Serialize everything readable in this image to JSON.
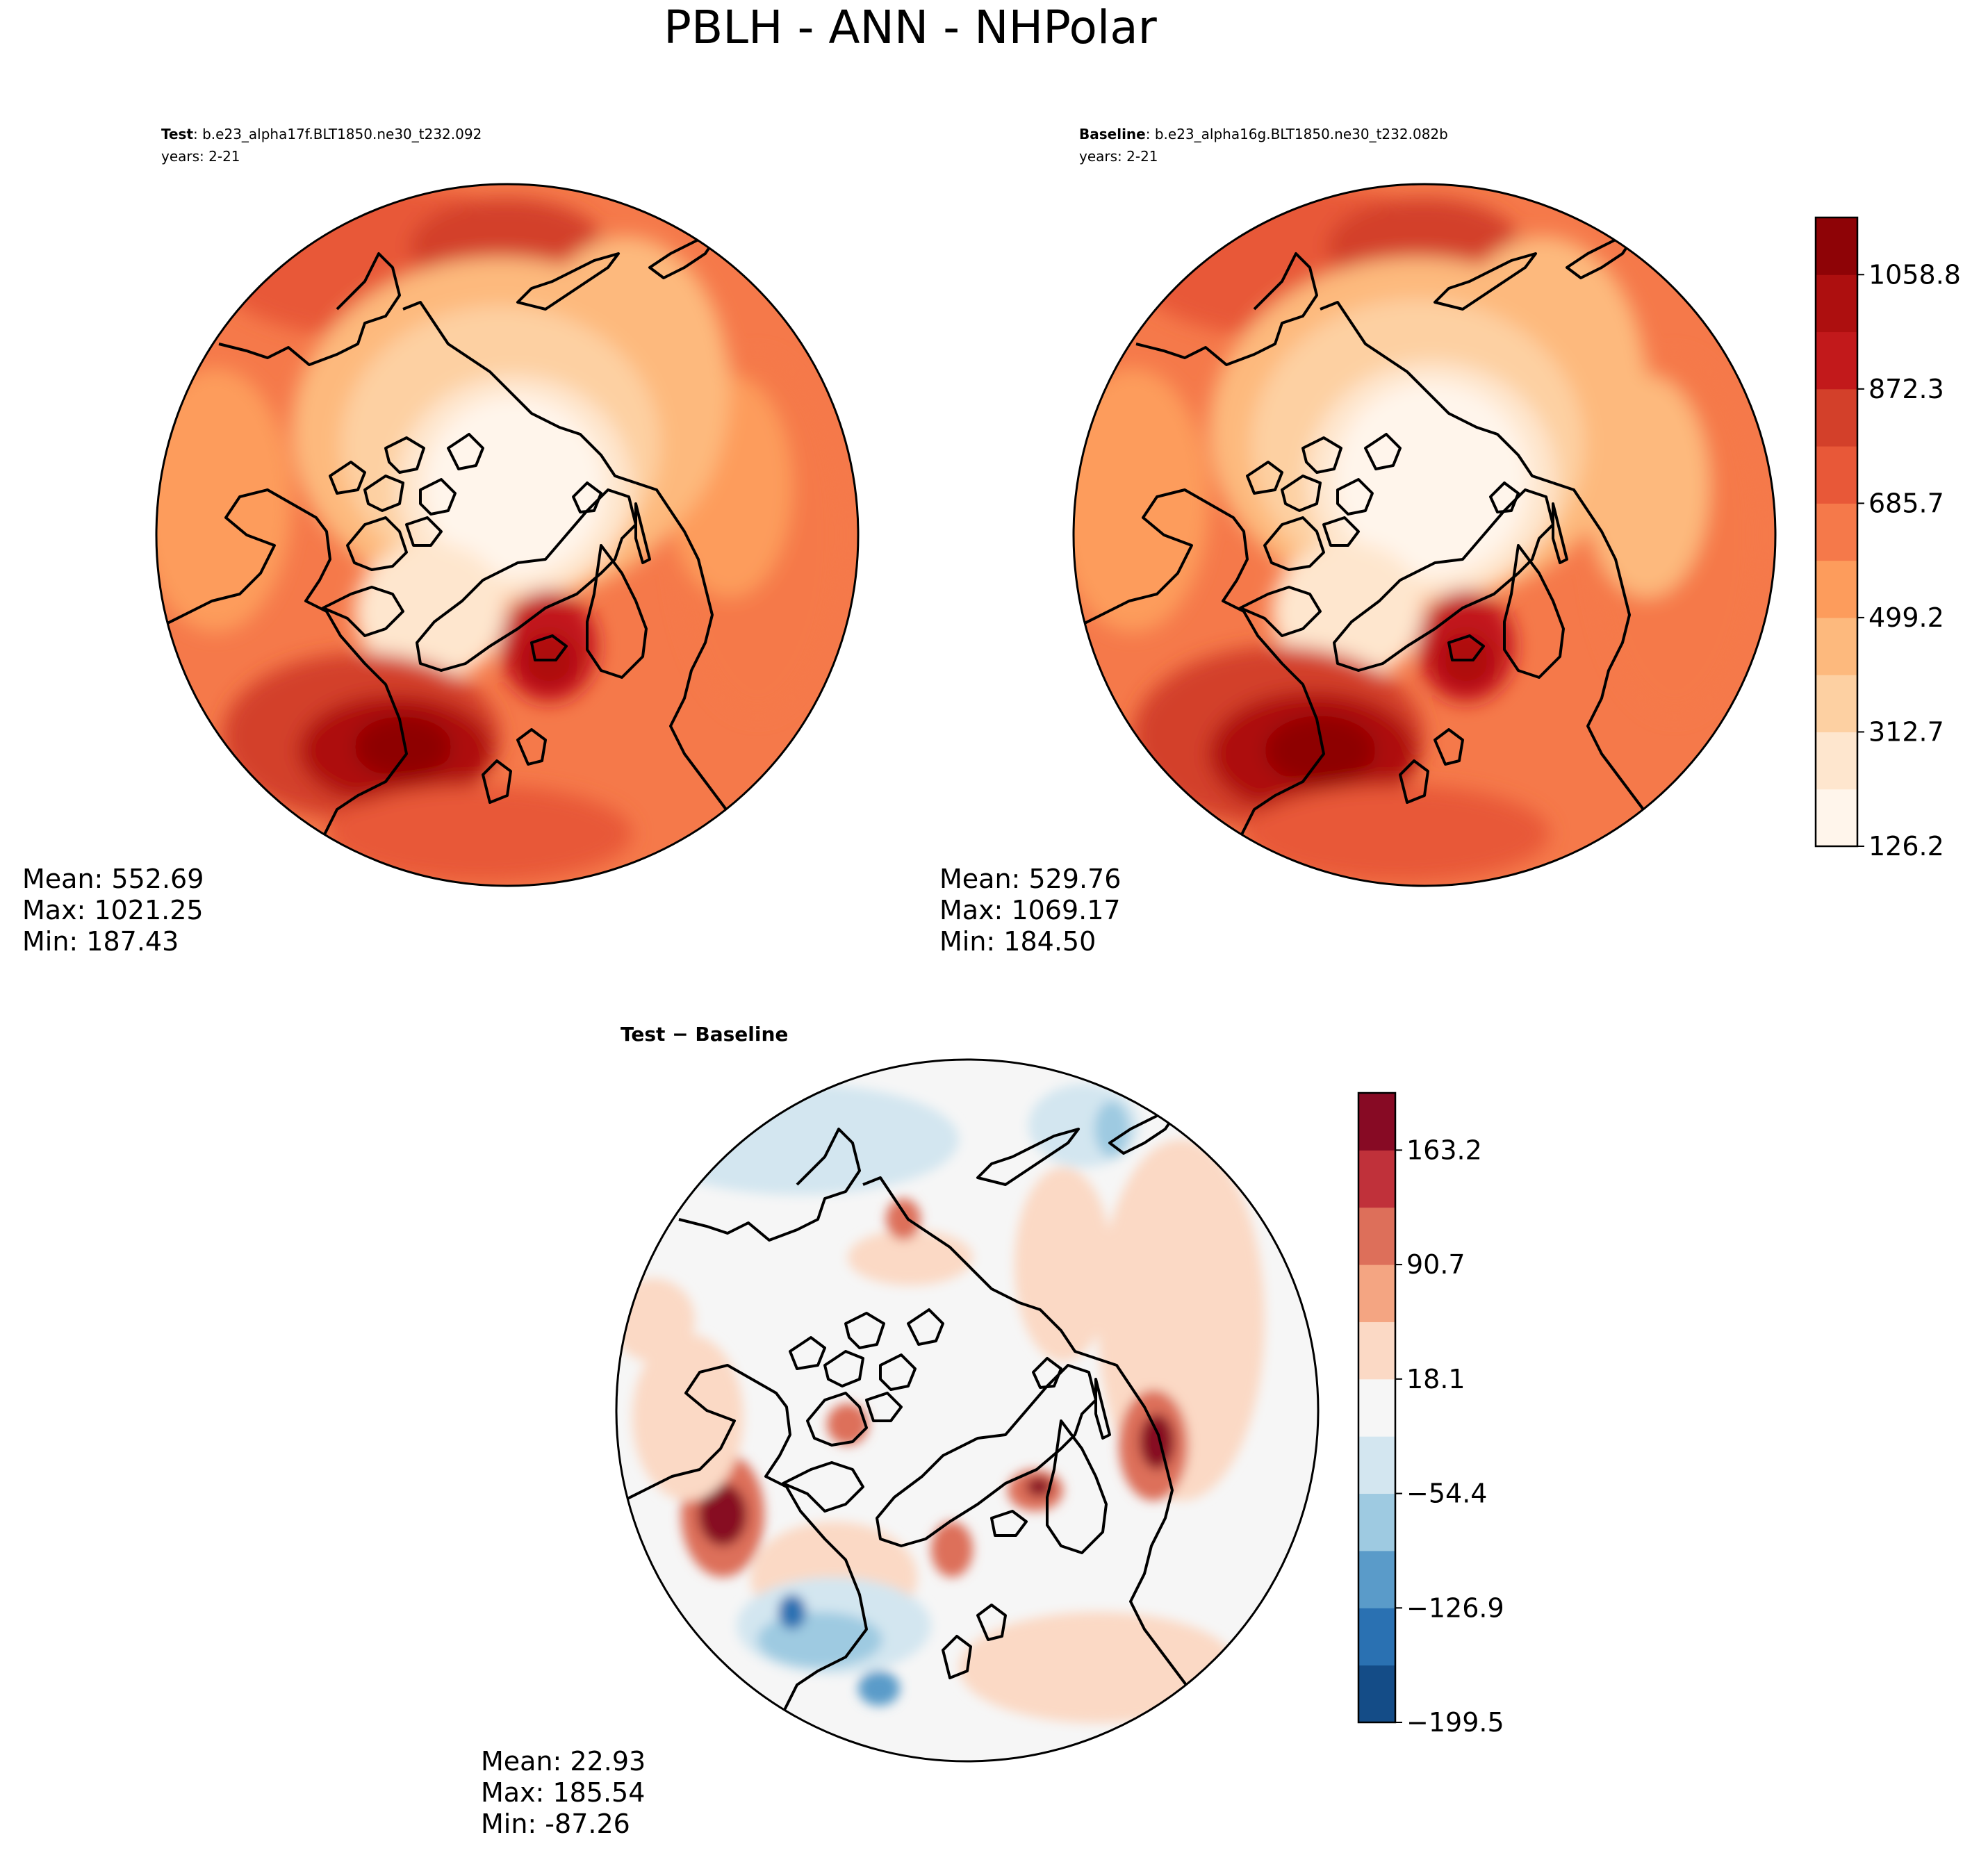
{
  "suptitle": "PBLH - ANN - NHPolar",
  "panels": {
    "test": {
      "label": "Test",
      "case": ": b.e23_alpha17f.BLT1850.ne30_t232.092",
      "years": "years: 2-21",
      "stats": {
        "mean": "Mean: 552.69",
        "max": "Max: 1021.25",
        "min": "Min: 187.43"
      }
    },
    "baseline": {
      "label": "Baseline",
      "case": ": b.e23_alpha16g.BLT1850.ne30_t232.082b",
      "years": "years: 2-21",
      "stats": {
        "mean": "Mean: 529.76",
        "max": "Max: 1069.17",
        "min": "Min: 184.50"
      }
    },
    "diff": {
      "title": "Test − Baseline",
      "stats": {
        "mean": "Mean: 22.93",
        "max": "Max: 185.54",
        "min": "Min: -87.26"
      }
    }
  },
  "colorbars": {
    "main": {
      "ticks": [
        "126.2",
        "312.7",
        "499.2",
        "685.7",
        "872.3",
        "1058.8"
      ],
      "colors": [
        "#fff5eb",
        "#fee6ce",
        "#fdd0a2",
        "#fdb97d",
        "#fd9c5c",
        "#f5794a",
        "#e85838",
        "#d3402a",
        "#c2191b",
        "#ad0f0f",
        "#8e0306"
      ]
    },
    "diff": {
      "ticks": [
        "−199.5",
        "−126.9",
        "−54.4",
        "18.1",
        "90.7",
        "163.2"
      ],
      "colors": [
        "#144c87",
        "#2a71b2",
        "#5a9bc9",
        "#9ecae1",
        "#d3e6f0",
        "#f6f6f6",
        "#fbd9c5",
        "#f4a582",
        "#dd6f5a",
        "#c0313a",
        "#870a24"
      ]
    }
  },
  "chart_data": [
    {
      "type": "heatmap",
      "title": "Test",
      "projection": "north polar stereographic",
      "colorbar_ticks": [
        126.2,
        312.7,
        499.2,
        685.7,
        872.3,
        1058.8
      ],
      "colorbar_range": [
        126.2,
        1152.0
      ],
      "stats": {
        "mean": 552.69,
        "max": 1021.25,
        "min": 187.43
      }
    },
    {
      "type": "heatmap",
      "title": "Baseline",
      "projection": "north polar stereographic",
      "colorbar_ticks": [
        126.2,
        312.7,
        499.2,
        685.7,
        872.3,
        1058.8
      ],
      "colorbar_range": [
        126.2,
        1152.0
      ],
      "stats": {
        "mean": 529.76,
        "max": 1069.17,
        "min": 184.5
      }
    },
    {
      "type": "heatmap",
      "title": "Test − Baseline",
      "projection": "north polar stereographic",
      "colorbar_ticks": [
        -199.5,
        -126.9,
        -54.4,
        18.1,
        90.7,
        163.2
      ],
      "colorbar_range": [
        -199.5,
        199.5
      ],
      "stats": {
        "mean": 22.93,
        "max": 185.54,
        "min": -87.26
      }
    }
  ]
}
